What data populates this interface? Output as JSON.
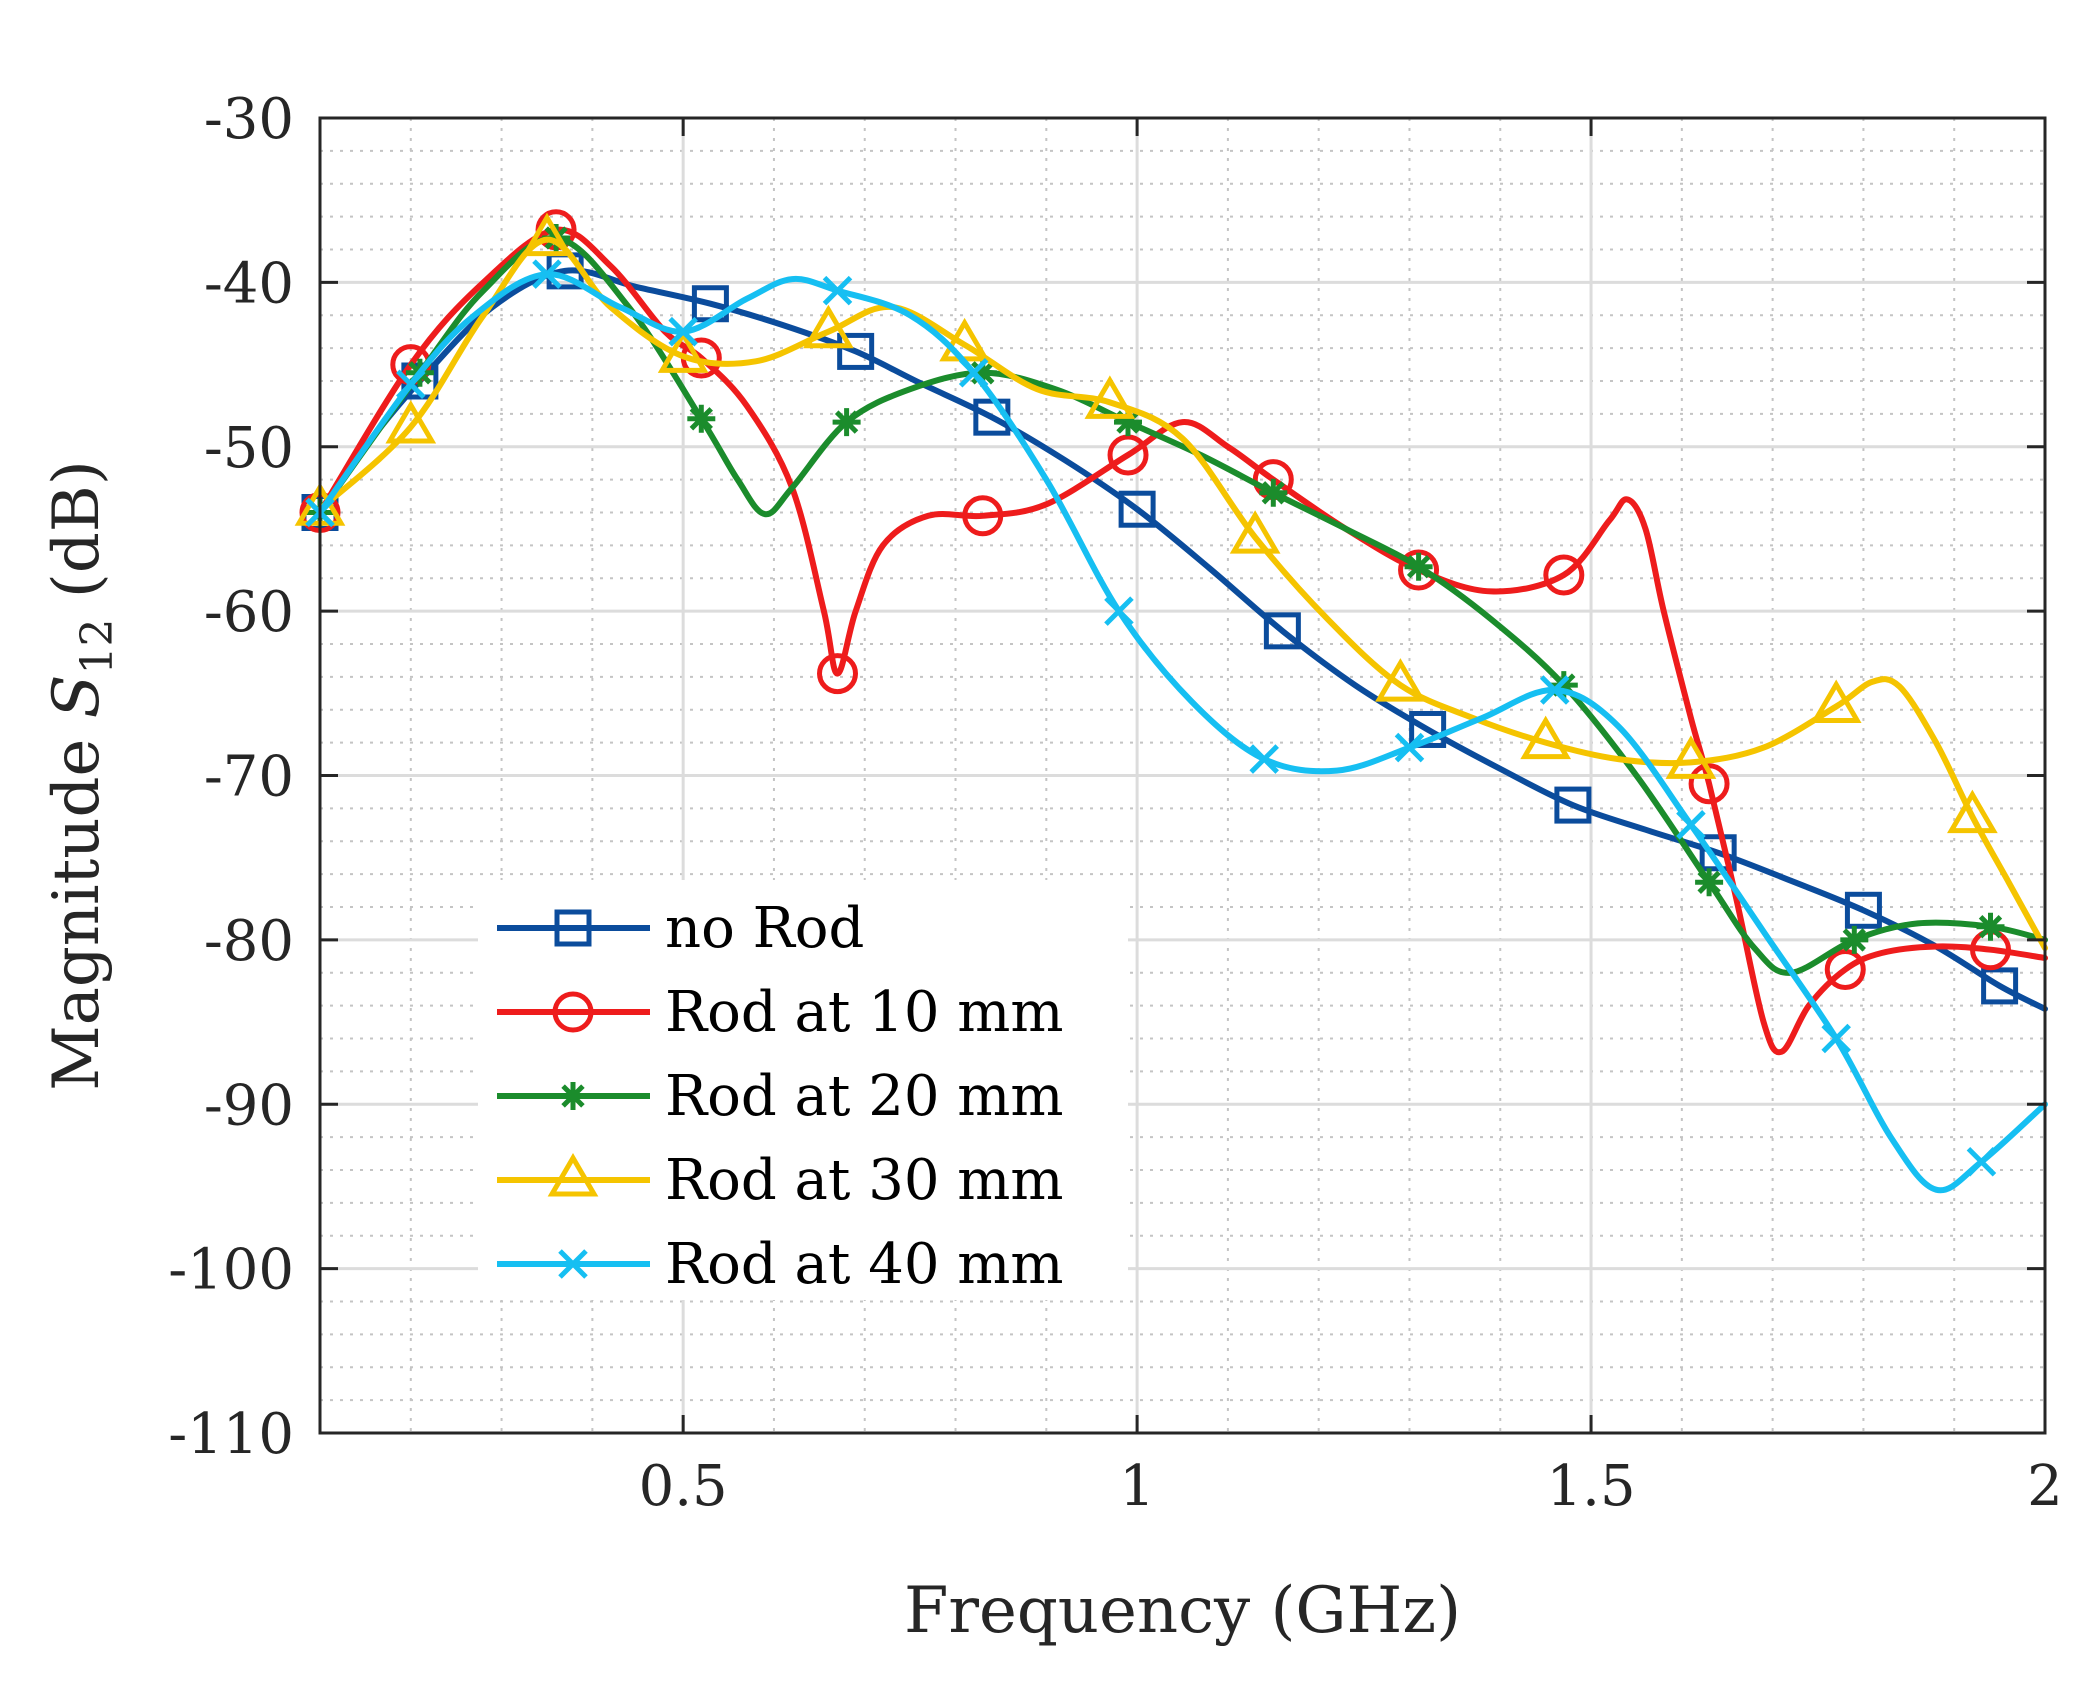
{
  "chart_data": {
    "type": "line",
    "xlabel": "Frequency (GHz)",
    "ylabel_prefix": "Magnitude ",
    "ylabel_symbol": "S",
    "ylabel_subscript": "12",
    "ylabel_suffix": " (dB)",
    "xlim": [
      0.1,
      2.0
    ],
    "ylim": [
      -110,
      -30
    ],
    "x_ticks": [
      0.5,
      1,
      1.5,
      2
    ],
    "x_tick_labels": [
      "0.5",
      "1",
      "1.5",
      "2"
    ],
    "y_ticks": [
      -30,
      -40,
      -50,
      -60,
      -70,
      -80,
      -90,
      -100,
      -110
    ],
    "y_tick_labels": [
      "-30",
      "-40",
      "-50",
      "-60",
      "-70",
      "-80",
      "-90",
      "-100",
      "-110"
    ],
    "grid": "major and minor (dotted)",
    "legend_position": "lower-left",
    "series": [
      {
        "name": "no Rod",
        "color": "#0b4c9c",
        "marker": "square",
        "marker_x": [
          0.1,
          0.21,
          0.37,
          0.53,
          0.69,
          0.84,
          1.0,
          1.16,
          1.32,
          1.48,
          1.64,
          1.8,
          1.95
        ],
        "marker_y": [
          -54,
          -46,
          -39.3,
          -41.3,
          -44.2,
          -48.2,
          -53.8,
          -61.2,
          -67.2,
          -71.8,
          -74.7,
          -78.2,
          -82.8
        ],
        "curve": [
          [
            0.1,
            -54
          ],
          [
            0.15,
            -50
          ],
          [
            0.21,
            -46
          ],
          [
            0.29,
            -41.5
          ],
          [
            0.37,
            -39.3
          ],
          [
            0.45,
            -40.3
          ],
          [
            0.53,
            -41.3
          ],
          [
            0.61,
            -42.6
          ],
          [
            0.69,
            -44.2
          ],
          [
            0.76,
            -46.1
          ],
          [
            0.84,
            -48.2
          ],
          [
            0.92,
            -50.8
          ],
          [
            1.0,
            -53.8
          ],
          [
            1.08,
            -57.4
          ],
          [
            1.16,
            -61.2
          ],
          [
            1.24,
            -64.5
          ],
          [
            1.32,
            -67.2
          ],
          [
            1.4,
            -69.6
          ],
          [
            1.48,
            -71.8
          ],
          [
            1.56,
            -73.3
          ],
          [
            1.64,
            -74.7
          ],
          [
            1.72,
            -76.4
          ],
          [
            1.8,
            -78.2
          ],
          [
            1.88,
            -80.4
          ],
          [
            1.95,
            -82.8
          ],
          [
            2.0,
            -84.2
          ]
        ]
      },
      {
        "name": "Rod at 10 mm",
        "color": "#ee1c1c",
        "marker": "circle",
        "marker_x": [
          0.1,
          0.2,
          0.36,
          0.52,
          0.67,
          0.83,
          0.99,
          1.15,
          1.31,
          1.47,
          1.63,
          1.78,
          1.94
        ],
        "marker_y": [
          -54,
          -45,
          -36.8,
          -44.6,
          -63.8,
          -54.2,
          -50.5,
          -52,
          -57.5,
          -57.8,
          -70.5,
          -81.8,
          -80.6
        ],
        "curve": [
          [
            0.1,
            -54
          ],
          [
            0.2,
            -45
          ],
          [
            0.28,
            -40
          ],
          [
            0.36,
            -36.8
          ],
          [
            0.42,
            -39
          ],
          [
            0.48,
            -43
          ],
          [
            0.52,
            -44.6
          ],
          [
            0.57,
            -47.5
          ],
          [
            0.62,
            -52.5
          ],
          [
            0.655,
            -60
          ],
          [
            0.67,
            -63.8
          ],
          [
            0.69,
            -60
          ],
          [
            0.72,
            -56
          ],
          [
            0.77,
            -54.2
          ],
          [
            0.83,
            -54.2
          ],
          [
            0.9,
            -53.5
          ],
          [
            0.99,
            -50.5
          ],
          [
            1.05,
            -48.5
          ],
          [
            1.1,
            -50
          ],
          [
            1.15,
            -52
          ],
          [
            1.23,
            -55
          ],
          [
            1.31,
            -57.5
          ],
          [
            1.39,
            -58.8
          ],
          [
            1.47,
            -57.8
          ],
          [
            1.52,
            -54.5
          ],
          [
            1.54,
            -53.2
          ],
          [
            1.56,
            -55
          ],
          [
            1.58,
            -60
          ],
          [
            1.61,
            -66.5
          ],
          [
            1.63,
            -70.5
          ],
          [
            1.66,
            -77.5
          ],
          [
            1.69,
            -85
          ],
          [
            1.71,
            -86.8
          ],
          [
            1.74,
            -84
          ],
          [
            1.78,
            -81.8
          ],
          [
            1.82,
            -80.8
          ],
          [
            1.88,
            -80.4
          ],
          [
            1.94,
            -80.6
          ],
          [
            2.0,
            -81.1
          ]
        ]
      },
      {
        "name": "Rod at 20 mm",
        "color": "#1b8c2c",
        "marker": "asterisk",
        "marker_x": [
          0.1,
          0.21,
          0.36,
          0.52,
          0.68,
          0.83,
          0.99,
          1.15,
          1.31,
          1.47,
          1.63,
          1.79,
          1.94
        ],
        "marker_y": [
          -54,
          -45.5,
          -37.3,
          -48.3,
          -48.5,
          -45.5,
          -48.5,
          -52.8,
          -57.3,
          -64.5,
          -76.5,
          -80,
          -79.2
        ],
        "curve": [
          [
            0.1,
            -54
          ],
          [
            0.21,
            -45.5
          ],
          [
            0.28,
            -40.5
          ],
          [
            0.36,
            -37.3
          ],
          [
            0.44,
            -41.5
          ],
          [
            0.52,
            -48.3
          ],
          [
            0.56,
            -52
          ],
          [
            0.59,
            -54.1
          ],
          [
            0.62,
            -52.5
          ],
          [
            0.68,
            -48.5
          ],
          [
            0.75,
            -46.5
          ],
          [
            0.83,
            -45.5
          ],
          [
            0.91,
            -46.5
          ],
          [
            0.99,
            -48.5
          ],
          [
            1.07,
            -50.5
          ],
          [
            1.15,
            -52.8
          ],
          [
            1.23,
            -55
          ],
          [
            1.31,
            -57.3
          ],
          [
            1.39,
            -60.5
          ],
          [
            1.47,
            -64.5
          ],
          [
            1.55,
            -70
          ],
          [
            1.63,
            -76.5
          ],
          [
            1.68,
            -80.5
          ],
          [
            1.72,
            -82
          ],
          [
            1.79,
            -80
          ],
          [
            1.86,
            -79
          ],
          [
            1.94,
            -79.2
          ],
          [
            2.0,
            -80
          ]
        ]
      },
      {
        "name": "Rod at 30 mm",
        "color": "#f5c400",
        "marker": "triangle",
        "marker_x": [
          0.1,
          0.2,
          0.35,
          0.5,
          0.66,
          0.81,
          0.97,
          1.13,
          1.29,
          1.45,
          1.61,
          1.77,
          1.92
        ],
        "marker_y": [
          -53.8,
          -48.8,
          -37.4,
          -44.5,
          -43,
          -43.8,
          -47.3,
          -55.5,
          -64.5,
          -68,
          -69.2,
          -65.8,
          -72.5
        ],
        "curve": [
          [
            0.1,
            -53.8
          ],
          [
            0.2,
            -48.8
          ],
          [
            0.28,
            -42
          ],
          [
            0.35,
            -37.4
          ],
          [
            0.42,
            -41.5
          ],
          [
            0.5,
            -44.5
          ],
          [
            0.58,
            -44.8
          ],
          [
            0.66,
            -43
          ],
          [
            0.73,
            -41.5
          ],
          [
            0.81,
            -43.8
          ],
          [
            0.89,
            -46.5
          ],
          [
            0.97,
            -47.3
          ],
          [
            1.05,
            -49.5
          ],
          [
            1.13,
            -55.5
          ],
          [
            1.21,
            -60.5
          ],
          [
            1.29,
            -64.5
          ],
          [
            1.37,
            -66.5
          ],
          [
            1.45,
            -68
          ],
          [
            1.53,
            -69
          ],
          [
            1.61,
            -69.2
          ],
          [
            1.69,
            -68.3
          ],
          [
            1.77,
            -65.8
          ],
          [
            1.81,
            -64.3
          ],
          [
            1.84,
            -64.6
          ],
          [
            1.88,
            -68
          ],
          [
            1.92,
            -72.5
          ],
          [
            1.96,
            -76.5
          ],
          [
            2.0,
            -80.5
          ]
        ]
      },
      {
        "name": "Rod at 40 mm",
        "color": "#16bff2",
        "marker": "cross",
        "marker_x": [
          0.1,
          0.2,
          0.35,
          0.5,
          0.67,
          0.82,
          0.98,
          1.14,
          1.3,
          1.46,
          1.61,
          1.77,
          1.93
        ],
        "marker_y": [
          -54,
          -46.2,
          -39.5,
          -43,
          -40.5,
          -45.5,
          -60,
          -69,
          -68.3,
          -64.8,
          -73,
          -86,
          -93.5
        ],
        "curve": [
          [
            0.1,
            -54
          ],
          [
            0.2,
            -46.2
          ],
          [
            0.27,
            -42
          ],
          [
            0.35,
            -39.5
          ],
          [
            0.43,
            -41.5
          ],
          [
            0.5,
            -43
          ],
          [
            0.57,
            -41
          ],
          [
            0.62,
            -39.8
          ],
          [
            0.67,
            -40.5
          ],
          [
            0.75,
            -42
          ],
          [
            0.82,
            -45.5
          ],
          [
            0.9,
            -52
          ],
          [
            0.98,
            -60
          ],
          [
            1.06,
            -65.5
          ],
          [
            1.14,
            -69
          ],
          [
            1.22,
            -69.7
          ],
          [
            1.3,
            -68.3
          ],
          [
            1.38,
            -66.5
          ],
          [
            1.46,
            -64.8
          ],
          [
            1.53,
            -67
          ],
          [
            1.61,
            -73
          ],
          [
            1.69,
            -79.5
          ],
          [
            1.77,
            -86
          ],
          [
            1.83,
            -92
          ],
          [
            1.88,
            -95.2
          ],
          [
            1.93,
            -93.5
          ],
          [
            2.0,
            -90
          ]
        ]
      }
    ]
  }
}
